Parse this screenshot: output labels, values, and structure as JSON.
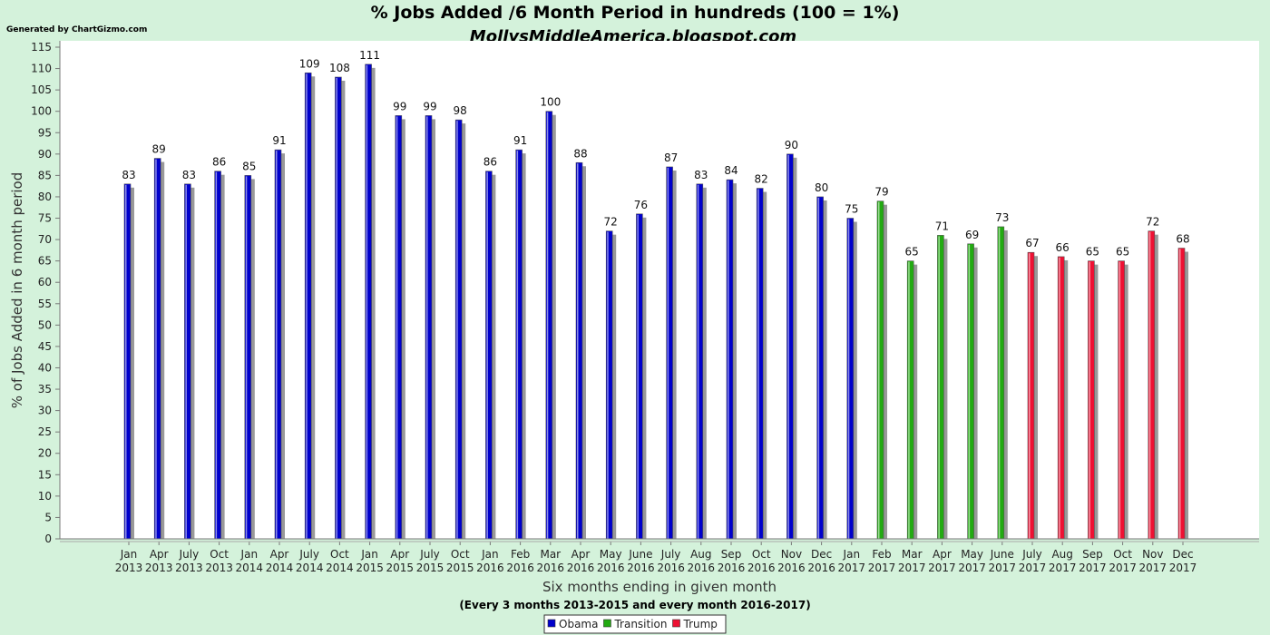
{
  "header": {
    "generated_by": "Generated by ChartGizmo.com"
  },
  "chart_data": {
    "type": "bar",
    "title": "% Jobs Added /6 Month Period in hundreds (100 = 1%)",
    "subtitle": "MollysMiddleAmerica.blogspot.com",
    "xlabel": "Six months ending in given month",
    "note": "(Every 3 months 2013-2015 and every month 2016-2017)",
    "ylabel": "% of Jobs Added in 6 month period",
    "ylim": [
      0,
      115
    ],
    "ytick_step": 5,
    "grid": false,
    "legend_position": "bottom-center",
    "categories": [
      [
        "Jan",
        "2013"
      ],
      [
        "Apr",
        "2013"
      ],
      [
        "July",
        "2013"
      ],
      [
        "Oct",
        "2013"
      ],
      [
        "Jan",
        "2014"
      ],
      [
        "Apr",
        "2014"
      ],
      [
        "July",
        "2014"
      ],
      [
        "Oct",
        "2014"
      ],
      [
        "Jan",
        "2015"
      ],
      [
        "Apr",
        "2015"
      ],
      [
        "July",
        "2015"
      ],
      [
        "Oct",
        "2015"
      ],
      [
        "Jan",
        "2016"
      ],
      [
        "Feb",
        "2016"
      ],
      [
        "Mar",
        "2016"
      ],
      [
        "Apr",
        "2016"
      ],
      [
        "May",
        "2016"
      ],
      [
        "June",
        "2016"
      ],
      [
        "July",
        "2016"
      ],
      [
        "Aug",
        "2016"
      ],
      [
        "Sep",
        "2016"
      ],
      [
        "Oct",
        "2016"
      ],
      [
        "Nov",
        "2016"
      ],
      [
        "Dec",
        "2016"
      ],
      [
        "Jan",
        "2017"
      ],
      [
        "Feb",
        "2017"
      ],
      [
        "Mar",
        "2017"
      ],
      [
        "Apr",
        "2017"
      ],
      [
        "May",
        "2017"
      ],
      [
        "June",
        "2017"
      ],
      [
        "July",
        "2017"
      ],
      [
        "Aug",
        "2017"
      ],
      [
        "Sep",
        "2017"
      ],
      [
        "Oct",
        "2017"
      ],
      [
        "Nov",
        "2017"
      ],
      [
        "Dec",
        "2017"
      ]
    ],
    "series": [
      {
        "name": "Obama",
        "color": "#0000cc",
        "values": [
          83,
          89,
          83,
          86,
          85,
          91,
          109,
          108,
          111,
          99,
          99,
          98,
          86,
          91,
          100,
          88,
          72,
          76,
          87,
          83,
          84,
          82,
          90,
          80,
          75,
          null,
          null,
          null,
          null,
          null,
          null,
          null,
          null,
          null,
          null,
          null
        ]
      },
      {
        "name": "Transition",
        "color": "#22aa11",
        "values": [
          null,
          null,
          null,
          null,
          null,
          null,
          null,
          null,
          null,
          null,
          null,
          null,
          null,
          null,
          null,
          null,
          null,
          null,
          null,
          null,
          null,
          null,
          null,
          null,
          null,
          79,
          65,
          71,
          69,
          73,
          null,
          null,
          null,
          null,
          null,
          null
        ]
      },
      {
        "name": "Trump",
        "color": "#ee1133",
        "values": [
          null,
          null,
          null,
          null,
          null,
          null,
          null,
          null,
          null,
          null,
          null,
          null,
          null,
          null,
          null,
          null,
          null,
          null,
          null,
          null,
          null,
          null,
          null,
          null,
          null,
          null,
          null,
          null,
          null,
          null,
          67,
          66,
          65,
          65,
          72,
          68
        ]
      }
    ]
  }
}
